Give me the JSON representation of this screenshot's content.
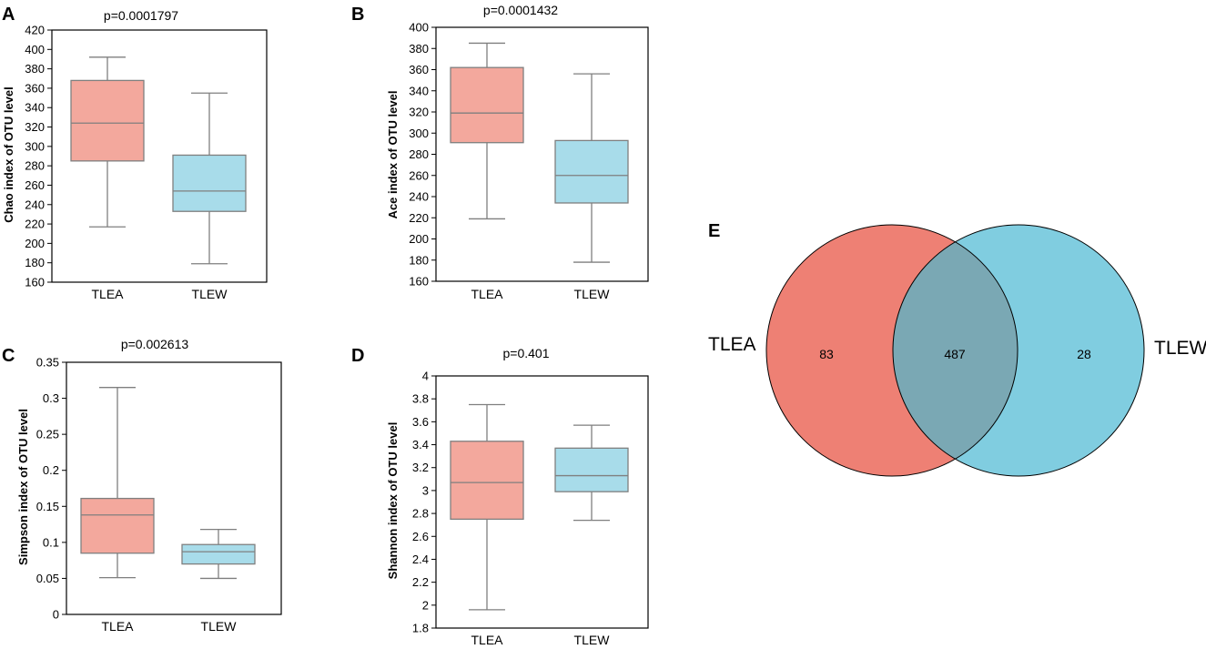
{
  "colors": {
    "tlea_box": "#f3a89d",
    "tlew_box": "#a8dcea",
    "line": "#7f7f7f",
    "venn_tlea": "#ee8074",
    "venn_tlew": "#80cde0",
    "venn_overlap": "#7aa8b4"
  },
  "chart_data": [
    {
      "type": "box",
      "panel": "A",
      "title": "p=0.0001797",
      "xlabel": "",
      "ylabel": "Chao index of OTU level",
      "categories": [
        "TLEA",
        "TLEW"
      ],
      "ylim": [
        160,
        420
      ],
      "yticks": [
        "160",
        "180",
        "200",
        "220",
        "240",
        "260",
        "280",
        "300",
        "320",
        "340",
        "360",
        "380",
        "400",
        "420"
      ],
      "boxes": [
        {
          "name": "TLEA",
          "min": 217,
          "q1": 285,
          "median": 324,
          "q3": 368,
          "max": 392
        },
        {
          "name": "TLEW",
          "min": 179,
          "q1": 233,
          "median": 254,
          "q3": 291,
          "max": 355
        }
      ]
    },
    {
      "type": "box",
      "panel": "B",
      "title": "p=0.0001432",
      "xlabel": "",
      "ylabel": "Ace index of OTU level",
      "categories": [
        "TLEA",
        "TLEW"
      ],
      "ylim": [
        160,
        400
      ],
      "yticks": [
        "160",
        "180",
        "200",
        "220",
        "240",
        "260",
        "280",
        "300",
        "320",
        "340",
        "360",
        "380",
        "400"
      ],
      "boxes": [
        {
          "name": "TLEA",
          "min": 219,
          "q1": 291,
          "median": 319,
          "q3": 362,
          "max": 385
        },
        {
          "name": "TLEW",
          "min": 178,
          "q1": 234,
          "median": 260,
          "q3": 293,
          "max": 356
        }
      ]
    },
    {
      "type": "box",
      "panel": "C",
      "title": "p=0.002613",
      "xlabel": "",
      "ylabel": "Simpson index of OTU level",
      "categories": [
        "TLEA",
        "TLEW"
      ],
      "ylim": [
        0,
        0.35
      ],
      "yticks": [
        "0",
        "0.05",
        "0.1",
        "0.15",
        "0.2",
        "0.25",
        "0.3",
        "0.35"
      ],
      "boxes": [
        {
          "name": "TLEA",
          "min": 0.051,
          "q1": 0.085,
          "median": 0.138,
          "q3": 0.161,
          "max": 0.315
        },
        {
          "name": "TLEW",
          "min": 0.05,
          "q1": 0.07,
          "median": 0.087,
          "q3": 0.097,
          "max": 0.118
        }
      ]
    },
    {
      "type": "box",
      "panel": "D",
      "title": "p=0.401",
      "xlabel": "",
      "ylabel": "Shannon index of OTU level",
      "categories": [
        "TLEA",
        "TLEW"
      ],
      "ylim": [
        1.8,
        4
      ],
      "yticks": [
        "1.8",
        "2",
        "2.2",
        "2.4",
        "2.6",
        "2.8",
        "3",
        "3.2",
        "3.4",
        "3.6",
        "3.8",
        "4"
      ],
      "boxes": [
        {
          "name": "TLEA",
          "min": 1.96,
          "q1": 2.75,
          "median": 3.07,
          "q3": 3.43,
          "max": 3.75
        },
        {
          "name": "TLEW",
          "min": 2.74,
          "q1": 2.99,
          "median": 3.13,
          "q3": 3.37,
          "max": 3.57
        }
      ]
    },
    {
      "type": "venn",
      "panel": "E",
      "sets": [
        {
          "name": "TLEA",
          "unique": "83"
        },
        {
          "name": "TLEW",
          "unique": "28"
        }
      ],
      "overlap": "487"
    }
  ]
}
